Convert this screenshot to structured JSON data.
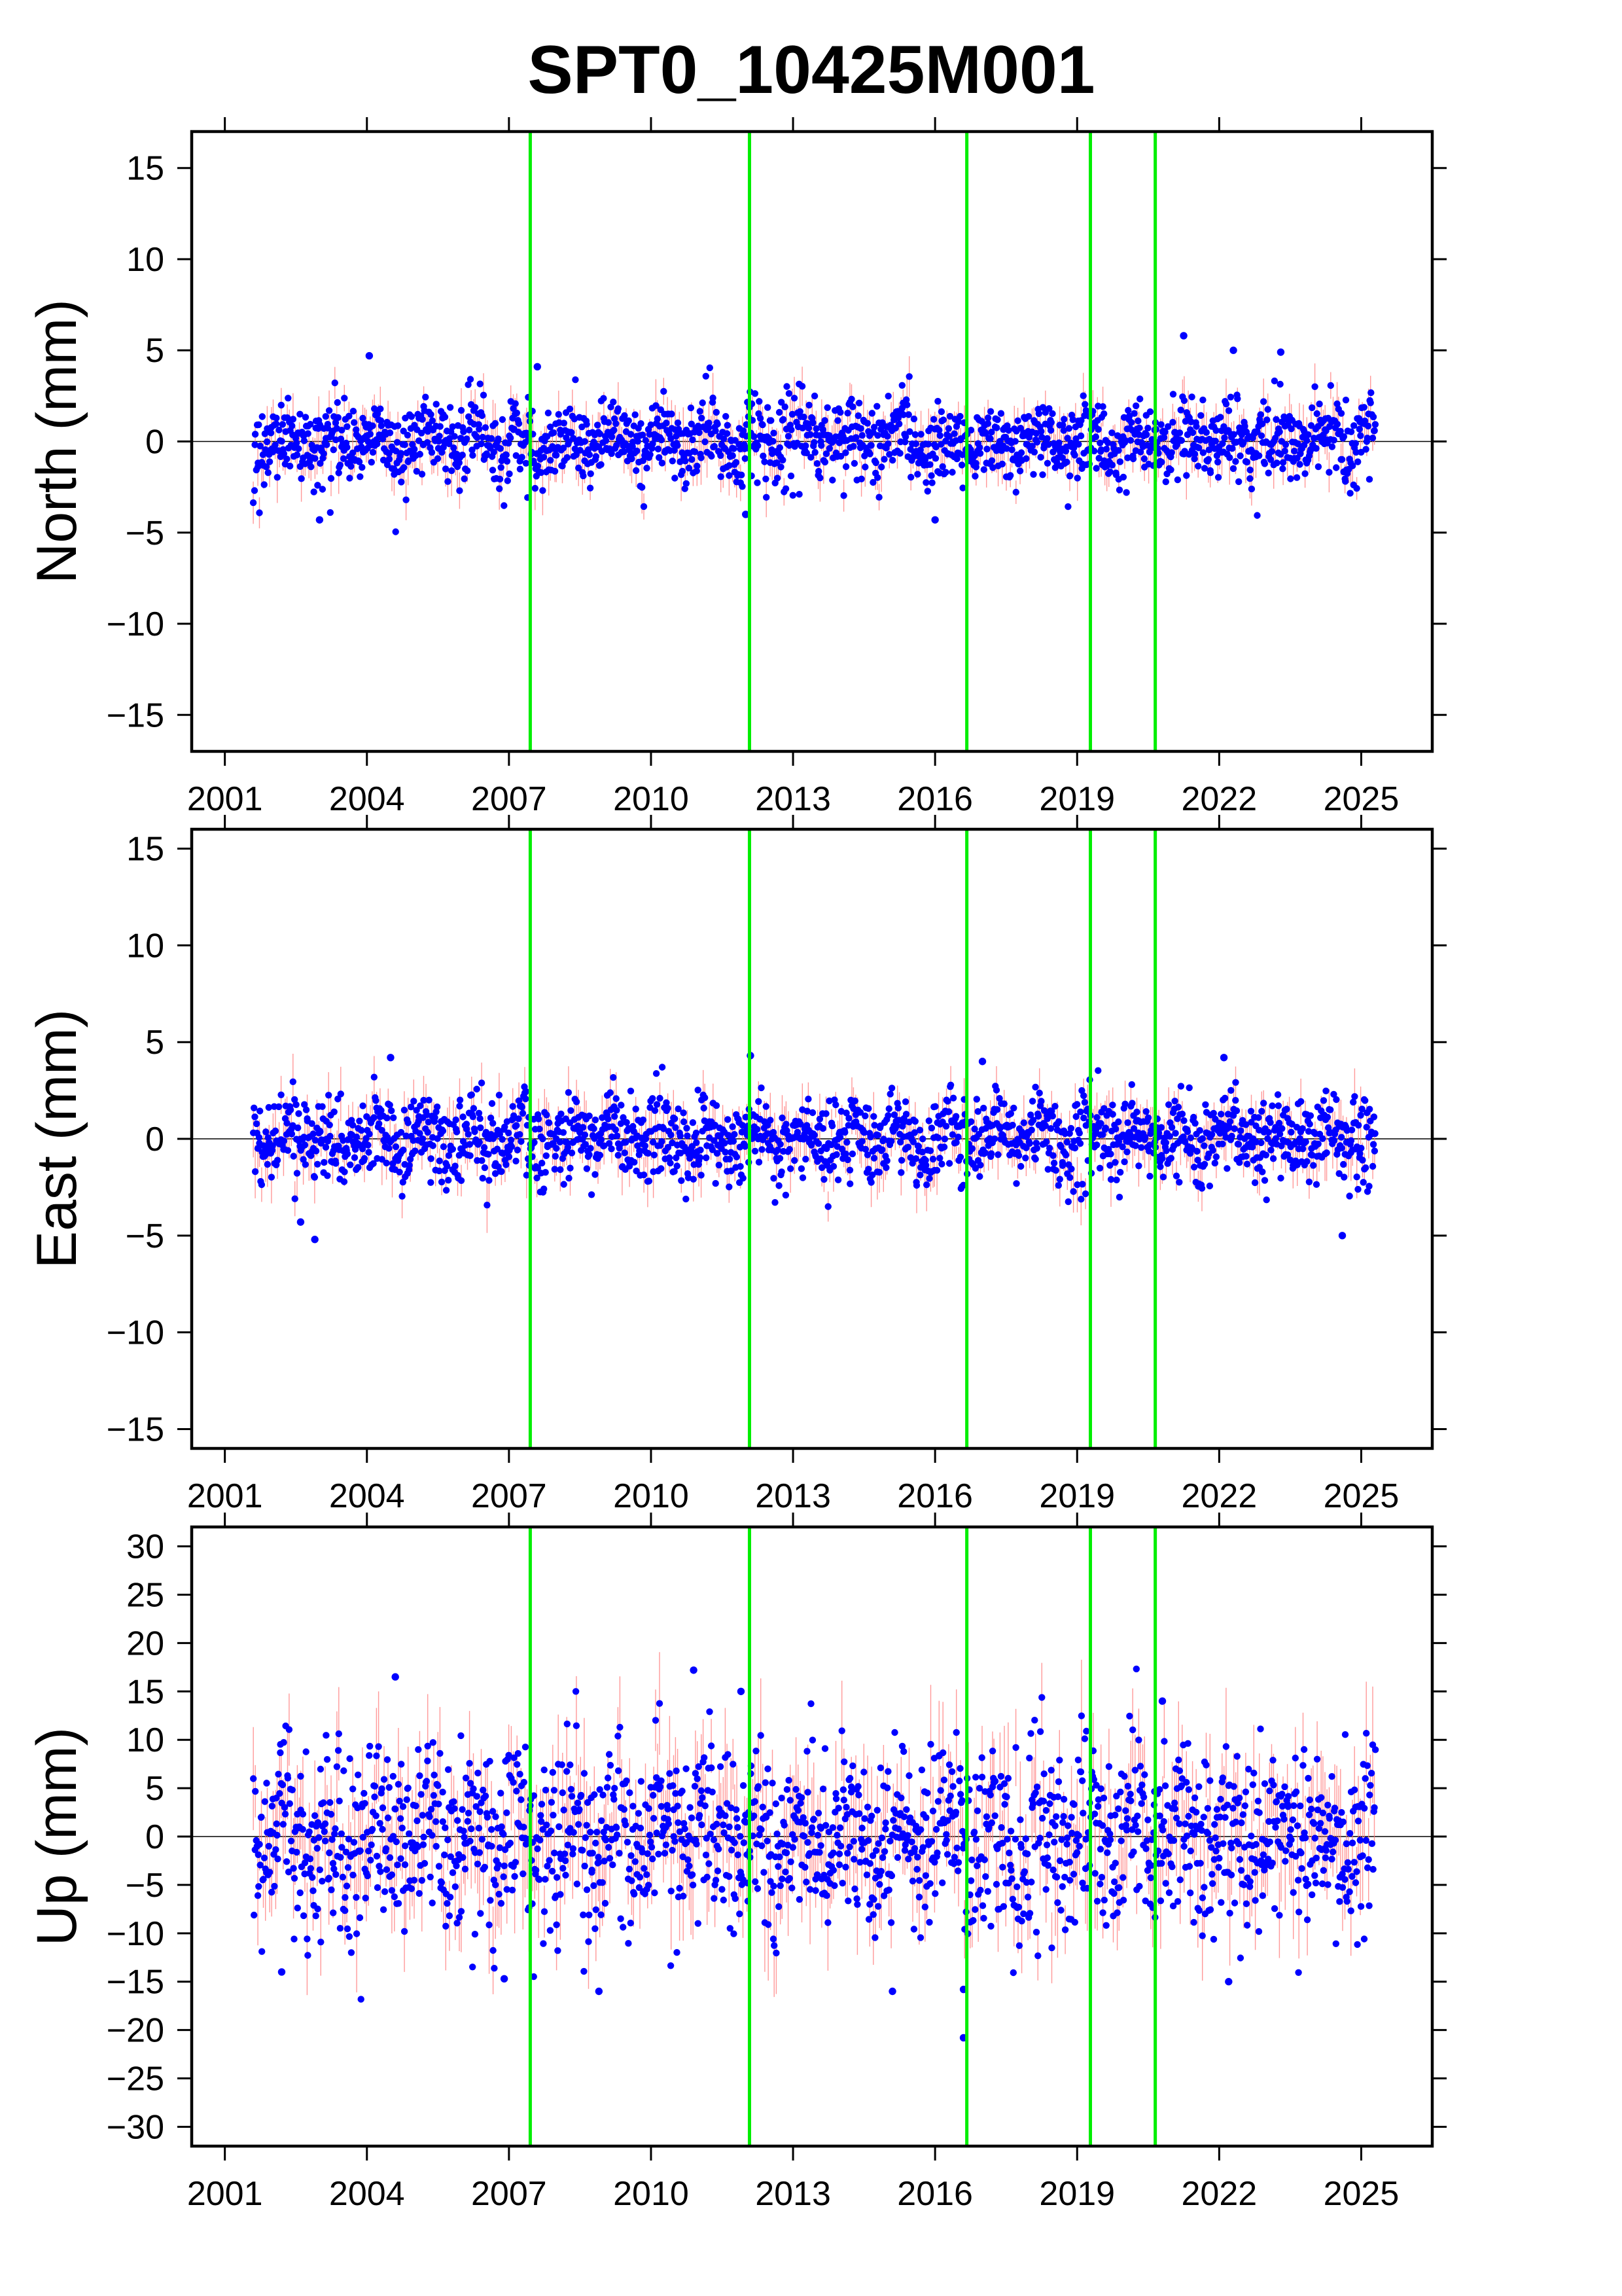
{
  "title": "SPT0_10425M001",
  "colors": {
    "points": "#0000ff",
    "error_bars": "#ff7f7f",
    "event_lines": "#00ee00",
    "zero_line": "#000000"
  },
  "chart_data": [
    {
      "type": "scatter",
      "ylabel": "North (mm)",
      "xlim": [
        2000.3,
        2026.5
      ],
      "ylim": [
        -17,
        17
      ],
      "xticks": [
        2001,
        2004,
        2007,
        2010,
        2013,
        2016,
        2019,
        2022,
        2025
      ],
      "xtick_labels": [
        "2001",
        "2004",
        "2007",
        "2010",
        "2013",
        "2016",
        "2019",
        "2022",
        "2025"
      ],
      "yticks": [
        -15,
        -10,
        -5,
        0,
        5,
        10,
        15
      ],
      "ytick_labels": [
        "−15",
        "−10",
        "−5",
        "0",
        "5",
        "10",
        "15"
      ],
      "x_range": [
        2001.6,
        2025.3
      ],
      "spread_mm": 1.1,
      "event_lines_x": [
        2007.45,
        2012.08,
        2016.67,
        2019.28,
        2020.65
      ],
      "outliers": [
        [
          2004.05,
          4.7
        ],
        [
          2007.6,
          4.1
        ],
        [
          2021.25,
          5.8
        ],
        [
          2022.3,
          5.0
        ],
        [
          2023.3,
          4.9
        ],
        [
          2003.0,
          -4.3
        ],
        [
          2016.0,
          -4.3
        ],
        [
          2012.0,
          -4.0
        ]
      ]
    },
    {
      "type": "scatter",
      "ylabel": "East (mm)",
      "xlim": [
        2000.3,
        2026.5
      ],
      "ylim": [
        -16,
        16
      ],
      "xticks": [
        2001,
        2004,
        2007,
        2010,
        2013,
        2016,
        2019,
        2022,
        2025
      ],
      "xtick_labels": [
        "2001",
        "2004",
        "2007",
        "2010",
        "2013",
        "2016",
        "2019",
        "2022",
        "2025"
      ],
      "yticks": [
        -15,
        -10,
        -5,
        0,
        5,
        10,
        15
      ],
      "ytick_labels": [
        "−15",
        "−10",
        "−5",
        "0",
        "5",
        "10",
        "15"
      ],
      "x_range": [
        2001.6,
        2025.3
      ],
      "spread_mm": 1.1,
      "event_lines_x": [
        2007.45,
        2012.08,
        2016.67,
        2019.28,
        2020.65
      ],
      "outliers": [
        [
          2004.5,
          4.2
        ],
        [
          2012.1,
          4.3
        ],
        [
          2022.1,
          4.2
        ],
        [
          2017.0,
          4.0
        ],
        [
          2002.9,
          -5.2
        ],
        [
          2024.6,
          -5.0
        ],
        [
          2002.6,
          -4.3
        ]
      ]
    },
    {
      "type": "scatter",
      "ylabel": "Up (mm)",
      "xlim": [
        2000.3,
        2026.5
      ],
      "ylim": [
        -32,
        32
      ],
      "xticks": [
        2001,
        2004,
        2007,
        2010,
        2013,
        2016,
        2019,
        2022,
        2025
      ],
      "xtick_labels": [
        "2001",
        "2004",
        "2007",
        "2010",
        "2013",
        "2016",
        "2019",
        "2022",
        "2025"
      ],
      "yticks": [
        -30,
        -25,
        -20,
        -15,
        -10,
        -5,
        0,
        5,
        10,
        15,
        20,
        25,
        30
      ],
      "ytick_labels": [
        "−30",
        "−25",
        "−20",
        "−15",
        "−10",
        "−5",
        "0",
        "5",
        "10",
        "15",
        "20",
        "25",
        "30"
      ],
      "x_range": [
        2001.6,
        2025.3
      ],
      "spread_mm": 4.6,
      "event_lines_x": [
        2007.45,
        2012.08,
        2016.67,
        2019.28,
        2020.65
      ],
      "outliers": [
        [
          2004.6,
          16.5
        ],
        [
          2010.9,
          17.2
        ],
        [
          2011.9,
          15.0
        ],
        [
          2016.6,
          -20.8
        ],
        [
          2016.6,
          -15.8
        ],
        [
          2015.1,
          -16.0
        ],
        [
          2008.9,
          -16.0
        ],
        [
          2022.2,
          -15.0
        ],
        [
          2002.2,
          -14.0
        ],
        [
          2006.9,
          -14.7
        ],
        [
          2020.8,
          14.0
        ]
      ]
    }
  ]
}
